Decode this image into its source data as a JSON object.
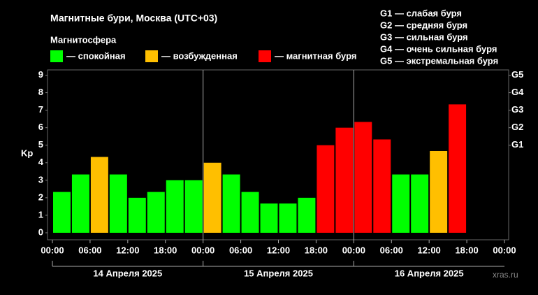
{
  "chart_data": {
    "type": "bar",
    "title": "Магнитные бури, Москва (UTC+03)",
    "legend_title": "Магнитосфера",
    "legend": [
      {
        "label": "— спокойная",
        "color": "#00ff00"
      },
      {
        "label": "— возбужденная",
        "color": "#ffbf00"
      },
      {
        "label": "— магнитная буря",
        "color": "#ff0000"
      }
    ],
    "g_scale": [
      "G1 — слабая буря",
      "G2 — средняя буря",
      "G3 — сильная буря",
      "G4 — очень сильная буря",
      "G5 — экстремальная буря"
    ],
    "y_label": "Kp",
    "x": [
      0,
      3,
      6,
      9,
      12,
      15,
      18,
      21,
      24,
      27,
      30,
      33,
      36,
      39,
      42,
      45,
      48,
      51,
      54,
      57,
      60,
      63,
      66,
      69
    ],
    "values": [
      2.33,
      3.33,
      4.33,
      3.33,
      2.0,
      2.33,
      3.0,
      3.0,
      4.0,
      3.33,
      2.33,
      1.67,
      1.67,
      2.0,
      5.0,
      6.0,
      6.33,
      5.33,
      3.33,
      3.33,
      4.67,
      7.33,
      null,
      null
    ],
    "colors": [
      "#00ff00",
      "#00ff00",
      "#ffbf00",
      "#00ff00",
      "#00ff00",
      "#00ff00",
      "#00ff00",
      "#00ff00",
      "#ffbf00",
      "#00ff00",
      "#00ff00",
      "#00ff00",
      "#00ff00",
      "#00ff00",
      "#ff0000",
      "#ff0000",
      "#ff0000",
      "#ff0000",
      "#00ff00",
      "#00ff00",
      "#ffbf00",
      "#ff0000",
      null,
      null
    ],
    "bar_width": 3,
    "xlim": [
      0,
      72
    ],
    "xticks": [
      {
        "value": 0,
        "label": "00:00"
      },
      {
        "value": 6,
        "label": "06:00"
      },
      {
        "value": 12,
        "label": "12:00"
      },
      {
        "value": 18,
        "label": "18:00"
      },
      {
        "value": 24,
        "label": "00:00"
      },
      {
        "value": 30,
        "label": "06:00"
      },
      {
        "value": 36,
        "label": "12:00"
      },
      {
        "value": 42,
        "label": "18:00"
      },
      {
        "value": 48,
        "label": "00:00"
      },
      {
        "value": 54,
        "label": "06:00"
      },
      {
        "value": 60,
        "label": "12:00"
      },
      {
        "value": 66,
        "label": "18:00"
      },
      {
        "value": 72,
        "label": "00:00"
      }
    ],
    "days": [
      {
        "label": "14 Апреля 2025",
        "xlim": [
          0,
          24
        ]
      },
      {
        "label": "15 Апреля 2025",
        "xlim": [
          24,
          48
        ]
      },
      {
        "label": "16 Апреля 2025",
        "xlim": [
          48,
          72
        ]
      }
    ],
    "ylim": [
      -0.4,
      9.3
    ],
    "yticks": [
      0,
      1,
      2,
      3,
      4,
      5,
      6,
      7,
      8,
      9
    ],
    "y2lim": [
      -0.4,
      9.3
    ],
    "y2ticks": [
      {
        "value": 5,
        "label": "G1"
      },
      {
        "value": 6,
        "label": "G2"
      },
      {
        "value": 7,
        "label": "G3"
      },
      {
        "value": 8,
        "label": "G4"
      },
      {
        "value": 9,
        "label": "G5"
      }
    ],
    "watermark": "xras.ru"
  }
}
